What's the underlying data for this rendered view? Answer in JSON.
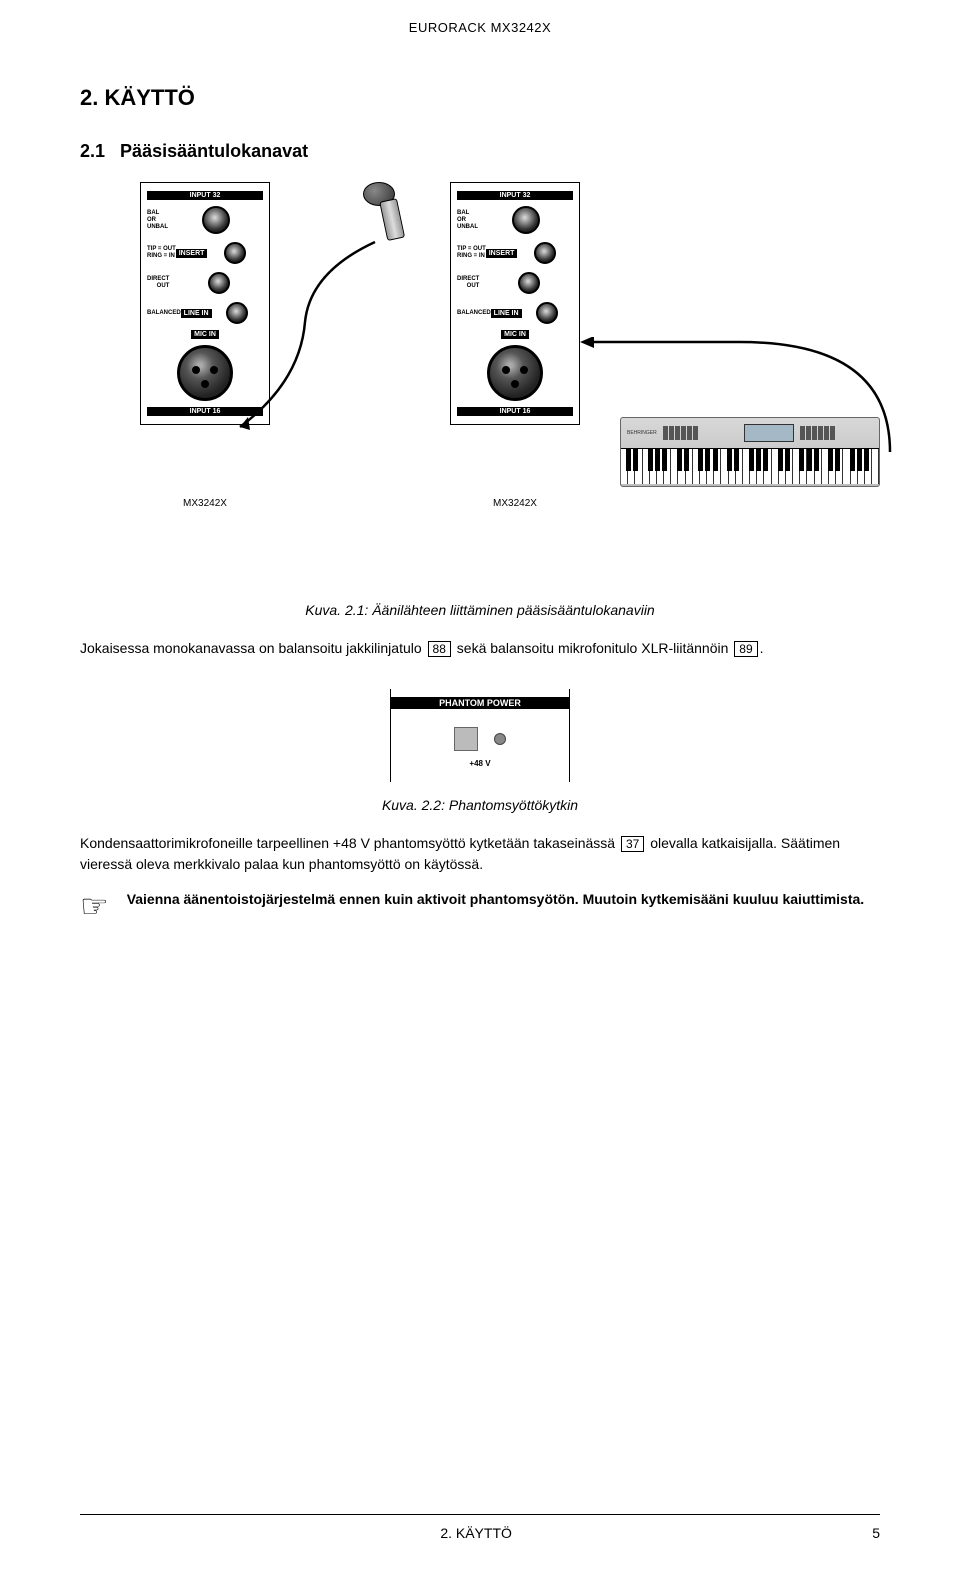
{
  "header": "EURORACK MX3242X",
  "section": {
    "number": "2.",
    "title": "KÄYTTÖ"
  },
  "subsection": {
    "number": "2.1",
    "title": "Pääsisääntulokanavat"
  },
  "figure1": {
    "panel": {
      "input_top_label": "INPUT 32",
      "bal_label": "BAL\nOR\nUNBAL",
      "tipring_label": "TIP = OUT\nRING = IN",
      "insert_label": "INSERT",
      "direct_out_label": "DIRECT\nOUT",
      "balanced_label": "BALANCED",
      "line_in_label": "LINE IN",
      "mic_in_label": "MIC IN",
      "input_bottom_label": "INPUT 16",
      "model": "MX3242X"
    },
    "synth_brand": "BEHRINGER",
    "caption": "Kuva. 2.1: Äänilähteen liittäminen pääsisääntulokanaviin"
  },
  "para1": {
    "before_ref1": "Jokaisessa monokanavassa on balansoitu jakkilinjatulo ",
    "ref1": "88",
    "between": " sekä balansoitu mikrofonitulo XLR-liitännöin ",
    "ref2": "89",
    "after": "."
  },
  "figure2": {
    "header": "PHANTOM POWER",
    "label": "+48 V",
    "caption": "Kuva. 2.2: Phantomsyöttökytkin"
  },
  "para2": {
    "before": "Kondensaattorimikrofoneille tarpeellinen +48 V phantomsyöttö kytketään takaseinässä ",
    "ref": "37",
    "after": " olevalla katkaisijalla. Säätimen vieressä oleva merkkivalo palaa kun phantomsyöttö on käytössä."
  },
  "note": {
    "icon": "☞",
    "text": "Vaienna äänentoistojärjestelmä ennen kuin aktivoit phantomsyötön. Muutoin kytkemisääni kuuluu kaiuttimista."
  },
  "footer": {
    "center": "2. KÄYTTÖ",
    "page": "5"
  }
}
